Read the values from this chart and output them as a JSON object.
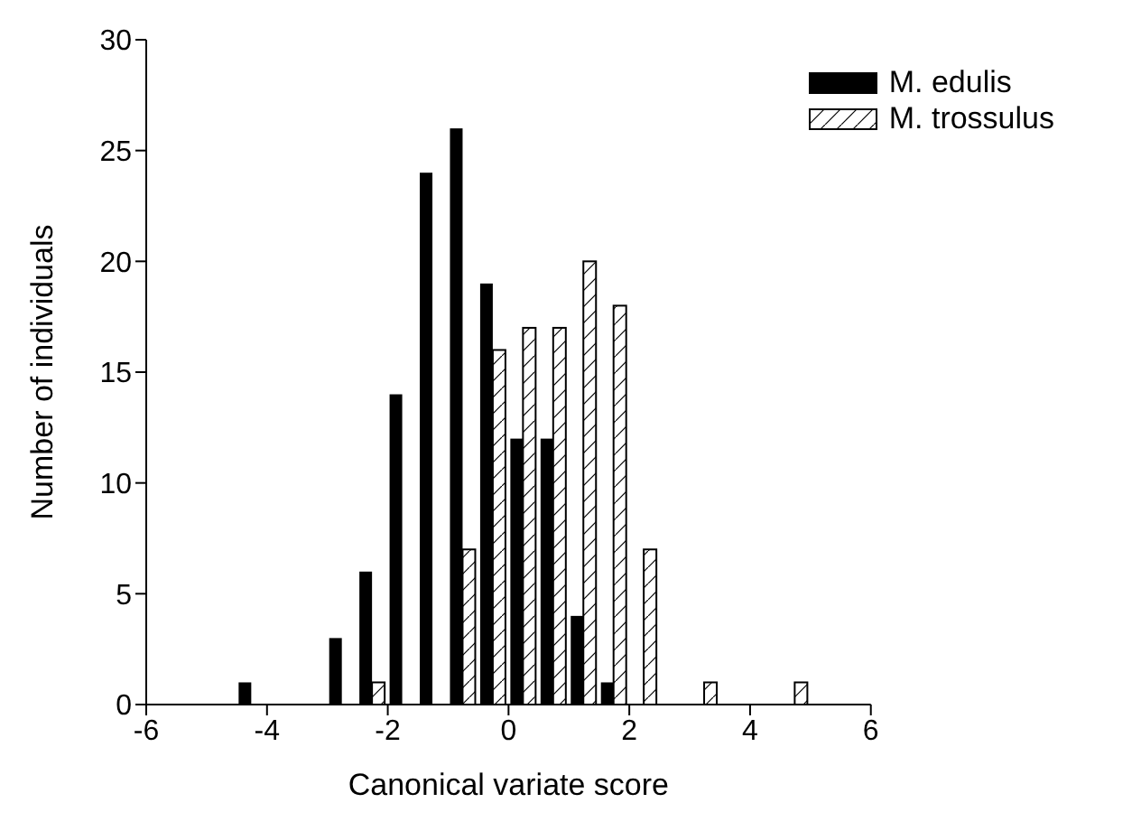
{
  "chart_data": {
    "type": "bar",
    "xlabel": "Canonical variate score",
    "ylabel": "Number of individuals",
    "x": [
      -4.25,
      -3.75,
      -3.25,
      -2.75,
      -2.25,
      -1.75,
      -1.25,
      -0.75,
      -0.25,
      0.25,
      0.75,
      1.25,
      1.75,
      2.25,
      2.75,
      3.25,
      3.75,
      4.25,
      4.75
    ],
    "series": [
      {
        "name": "M. edulis",
        "color": "#000000",
        "values": [
          1,
          0,
          0,
          3,
          6,
          14,
          24,
          26,
          19,
          12,
          12,
          4,
          1,
          0,
          0,
          0,
          0,
          0,
          0
        ]
      },
      {
        "name": "M. trossulus",
        "color": "#ffffff",
        "values": [
          0,
          0,
          0,
          0,
          1,
          0,
          0,
          7,
          16,
          17,
          17,
          20,
          18,
          7,
          0,
          1,
          0,
          0,
          1
        ]
      }
    ],
    "xlim": [
      -6,
      6
    ],
    "xticks": [
      -6,
      -4,
      -2,
      0,
      2,
      4,
      6
    ],
    "ylim": [
      0,
      30
    ],
    "yticks": [
      0,
      5,
      10,
      15,
      20,
      25,
      30
    ],
    "grid": false,
    "legend": "top right"
  }
}
